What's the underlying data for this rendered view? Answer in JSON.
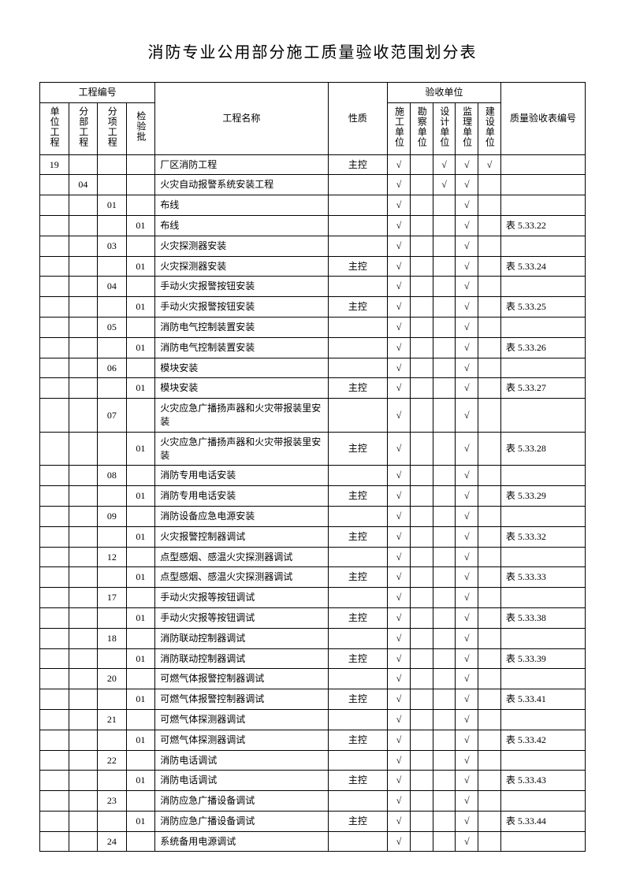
{
  "title": "消防专业公用部分施工质量验收范围划分表",
  "headers": {
    "group_proj_no": "工程编号",
    "unit_proj": "单位工程",
    "div_proj": "分部工程",
    "sub_proj": "分项工程",
    "batch": "检验批",
    "proj_name": "工程名称",
    "property": "性质",
    "accept_unit": "验收单位",
    "u1": "施工单位",
    "u2": "勘察单位",
    "u3": "设计单位",
    "u4": "监理单位",
    "u5": "建设单位",
    "ref_no": "质量验收表编号"
  },
  "check": "√",
  "rows": [
    {
      "a": "19",
      "b": "",
      "c": "",
      "d": "",
      "name": "厂区消防工程",
      "prop": "主控",
      "u": [
        1,
        0,
        1,
        1,
        1
      ],
      "ref": ""
    },
    {
      "a": "",
      "b": "04",
      "c": "",
      "d": "",
      "name": "火灾自动报警系统安装工程",
      "prop": "",
      "u": [
        1,
        0,
        1,
        1,
        0
      ],
      "ref": ""
    },
    {
      "a": "",
      "b": "",
      "c": "01",
      "d": "",
      "name": "布线",
      "prop": "",
      "u": [
        1,
        0,
        0,
        1,
        0
      ],
      "ref": ""
    },
    {
      "a": "",
      "b": "",
      "c": "",
      "d": "01",
      "name": "布线",
      "prop": "",
      "u": [
        1,
        0,
        0,
        1,
        0
      ],
      "ref": "表 5.33.22"
    },
    {
      "a": "",
      "b": "",
      "c": "03",
      "d": "",
      "name": "火灾探测器安装",
      "prop": "",
      "u": [
        1,
        0,
        0,
        1,
        0
      ],
      "ref": ""
    },
    {
      "a": "",
      "b": "",
      "c": "",
      "d": "01",
      "name": "火灾探测器安装",
      "prop": "主控",
      "u": [
        1,
        0,
        0,
        1,
        0
      ],
      "ref": "表 5.33.24"
    },
    {
      "a": "",
      "b": "",
      "c": "04",
      "d": "",
      "name": "手动火灾报警按钮安装",
      "prop": "",
      "u": [
        1,
        0,
        0,
        1,
        0
      ],
      "ref": ""
    },
    {
      "a": "",
      "b": "",
      "c": "",
      "d": "01",
      "name": "手动火灾报警按钮安装",
      "prop": "主控",
      "u": [
        1,
        0,
        0,
        1,
        0
      ],
      "ref": "表 5.33.25"
    },
    {
      "a": "",
      "b": "",
      "c": "05",
      "d": "",
      "name": "消防电气控制装置安装",
      "prop": "",
      "u": [
        1,
        0,
        0,
        1,
        0
      ],
      "ref": ""
    },
    {
      "a": "",
      "b": "",
      "c": "",
      "d": "01",
      "name": "消防电气控制装置安装",
      "prop": "",
      "u": [
        1,
        0,
        0,
        1,
        0
      ],
      "ref": "表 5.33.26"
    },
    {
      "a": "",
      "b": "",
      "c": "06",
      "d": "",
      "name": "模块安装",
      "prop": "",
      "u": [
        1,
        0,
        0,
        1,
        0
      ],
      "ref": ""
    },
    {
      "a": "",
      "b": "",
      "c": "",
      "d": "01",
      "name": "模块安装",
      "prop": "主控",
      "u": [
        1,
        0,
        0,
        1,
        0
      ],
      "ref": "表 5.33.27"
    },
    {
      "a": "",
      "b": "",
      "c": "07",
      "d": "",
      "name": "火灾应急广播扬声器和火灾带报装里安装",
      "prop": "",
      "u": [
        1,
        0,
        0,
        1,
        0
      ],
      "ref": ""
    },
    {
      "a": "",
      "b": "",
      "c": "",
      "d": "01",
      "name": "火灾应急广播扬声器和火灾带报装里安装",
      "prop": "主控",
      "u": [
        1,
        0,
        0,
        1,
        0
      ],
      "ref": "表 5.33.28"
    },
    {
      "a": "",
      "b": "",
      "c": "08",
      "d": "",
      "name": "消防专用电话安装",
      "prop": "",
      "u": [
        1,
        0,
        0,
        1,
        0
      ],
      "ref": ""
    },
    {
      "a": "",
      "b": "",
      "c": "",
      "d": "01",
      "name": "消防专用电话安装",
      "prop": "主控",
      "u": [
        1,
        0,
        0,
        1,
        0
      ],
      "ref": "表 5.33.29"
    },
    {
      "a": "",
      "b": "",
      "c": "09",
      "d": "",
      "name": "消防设备应急电源安装",
      "prop": "",
      "u": [
        1,
        0,
        0,
        1,
        0
      ],
      "ref": ""
    },
    {
      "a": "",
      "b": "",
      "c": "",
      "d": "01",
      "name": "火灾报警控制器调试",
      "prop": "主控",
      "u": [
        1,
        0,
        0,
        1,
        0
      ],
      "ref": "表 5.33.32"
    },
    {
      "a": "",
      "b": "",
      "c": "12",
      "d": "",
      "name": "点型感烟、感温火灾探测器调试",
      "prop": "",
      "u": [
        1,
        0,
        0,
        1,
        0
      ],
      "ref": ""
    },
    {
      "a": "",
      "b": "",
      "c": "",
      "d": "01",
      "name": "点型感烟、感温火灾探测器调试",
      "prop": "主控",
      "u": [
        1,
        0,
        0,
        1,
        0
      ],
      "ref": "表 5.33.33"
    },
    {
      "a": "",
      "b": "",
      "c": "17",
      "d": "",
      "name": "手动火灾报等按钮调试",
      "prop": "",
      "u": [
        1,
        0,
        0,
        1,
        0
      ],
      "ref": ""
    },
    {
      "a": "",
      "b": "",
      "c": "",
      "d": "01",
      "name": "手动火灾报等按钮调试",
      "prop": "主控",
      "u": [
        1,
        0,
        0,
        1,
        0
      ],
      "ref": "表 5.33.38"
    },
    {
      "a": "",
      "b": "",
      "c": "18",
      "d": "",
      "name": "消防联动控制器调试",
      "prop": "",
      "u": [
        1,
        0,
        0,
        1,
        0
      ],
      "ref": ""
    },
    {
      "a": "",
      "b": "",
      "c": "",
      "d": "01",
      "name": "消防联动控制器调试",
      "prop": "主控",
      "u": [
        1,
        0,
        0,
        1,
        0
      ],
      "ref": "表 5.33.39"
    },
    {
      "a": "",
      "b": "",
      "c": "20",
      "d": "",
      "name": "可燃气体报警控制器调试",
      "prop": "",
      "u": [
        1,
        0,
        0,
        1,
        0
      ],
      "ref": ""
    },
    {
      "a": "",
      "b": "",
      "c": "",
      "d": "01",
      "name": "可燃气体报警控制器调试",
      "prop": "主控",
      "u": [
        1,
        0,
        0,
        1,
        0
      ],
      "ref": "表 5.33.41"
    },
    {
      "a": "",
      "b": "",
      "c": "21",
      "d": "",
      "name": "可燃气体探测器调试",
      "prop": "",
      "u": [
        1,
        0,
        0,
        1,
        0
      ],
      "ref": ""
    },
    {
      "a": "",
      "b": "",
      "c": "",
      "d": "01",
      "name": "可燃气体探测器调试",
      "prop": "主控",
      "u": [
        1,
        0,
        0,
        1,
        0
      ],
      "ref": "表 5.33.42"
    },
    {
      "a": "",
      "b": "",
      "c": "22",
      "d": "",
      "name": "消防电话调试",
      "prop": "",
      "u": [
        1,
        0,
        0,
        1,
        0
      ],
      "ref": ""
    },
    {
      "a": "",
      "b": "",
      "c": "",
      "d": "01",
      "name": "消防电话调试",
      "prop": "主控",
      "u": [
        1,
        0,
        0,
        1,
        0
      ],
      "ref": "表 5.33.43"
    },
    {
      "a": "",
      "b": "",
      "c": "23",
      "d": "",
      "name": "消防应急广播设备调试",
      "prop": "",
      "u": [
        1,
        0,
        0,
        1,
        0
      ],
      "ref": ""
    },
    {
      "a": "",
      "b": "",
      "c": "",
      "d": "01",
      "name": "消防应急广播设备调试",
      "prop": "主控",
      "u": [
        1,
        0,
        0,
        1,
        0
      ],
      "ref": "表 5.33.44"
    },
    {
      "a": "",
      "b": "",
      "c": "24",
      "d": "",
      "name": "系统备用电源调试",
      "prop": "",
      "u": [
        1,
        0,
        0,
        1,
        0
      ],
      "ref": ""
    }
  ]
}
